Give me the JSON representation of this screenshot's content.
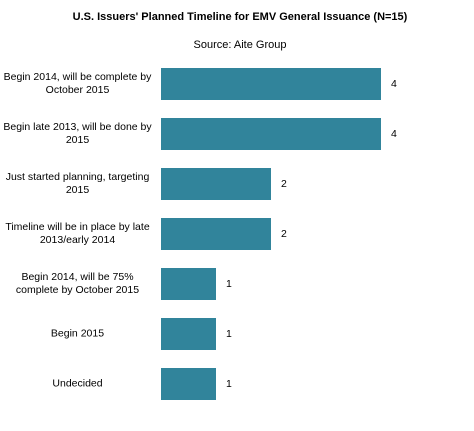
{
  "chart_data": {
    "type": "bar",
    "orientation": "horizontal",
    "title": "U.S. Issuers' Planned Timeline for EMV General Issuance (N=15)",
    "subtitle": "Source: Aite Group",
    "categories": [
      "Begin 2014, will be complete by October 2015",
      "Begin late 2013, will be done by 2015",
      "Just started planning, targeting 2015",
      "Timeline will be in place by late 2013/early 2014",
      "Begin 2014, will be 75% complete by October 2015",
      "Begin 2015",
      "Undecided"
    ],
    "values": [
      4,
      4,
      2,
      2,
      1,
      1,
      1
    ],
    "color": "#31849b"
  }
}
